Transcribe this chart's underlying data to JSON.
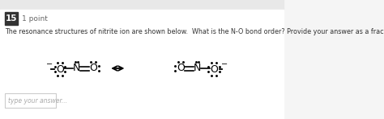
{
  "bg_top_strip": "#e8e8e8",
  "bg_main": "#f5f5f5",
  "white_bg": "#ffffff",
  "dark_label_bg": "#333333",
  "question_number": "15",
  "points_text": "1 point",
  "question_text": "The resonance structures of nitrite ion are shown below.  What is the N-O bond order? Provide your answer as a fraction.",
  "answer_placeholder": "type your answer...",
  "fig_w": 4.74,
  "fig_h": 1.48,
  "dpi": 100
}
